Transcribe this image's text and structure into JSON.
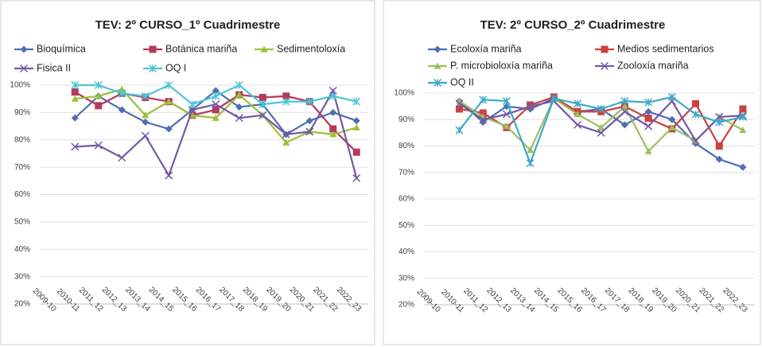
{
  "chart_data": [
    {
      "type": "line",
      "title": "TEV: 2º CURSO_1º Cuadrimestre",
      "categories": [
        "2009-10",
        "2010-11",
        "2011_12",
        "2012_13",
        "2013_14",
        "2014_15",
        "2015_16",
        "2016_17",
        "2017_18",
        "2018_19",
        "2019_20",
        "2020_21",
        "2021_22",
        "2022_23"
      ],
      "ylim": [
        20,
        100
      ],
      "yticks": [
        {
          "value": 20,
          "label": "20%"
        },
        {
          "value": 30,
          "label": "30%"
        },
        {
          "value": 40,
          "label": "40%"
        },
        {
          "value": 50,
          "label": "50%"
        },
        {
          "value": 60,
          "label": "60%"
        },
        {
          "value": 70,
          "label": "70%"
        },
        {
          "value": 80,
          "label": "80%"
        },
        {
          "value": 90,
          "label": "90%"
        },
        {
          "value": 100,
          "label": "100%"
        }
      ],
      "grid": true,
      "legend": "top",
      "series": [
        {
          "name": "Bioquímica",
          "color": "#4f6fb0",
          "marker": "diamond",
          "values": [
            null,
            88,
            96,
            91,
            86.5,
            84,
            91,
            98,
            92,
            93,
            82,
            87,
            90,
            87
          ]
        },
        {
          "name": "Botánica mariña",
          "color": "#b23a5a",
          "marker": "square",
          "values": [
            null,
            97.5,
            92.5,
            97,
            95.5,
            94,
            89,
            91,
            96.5,
            95.5,
            96,
            94,
            84,
            75.5
          ]
        },
        {
          "name": "Sedimentoloxía",
          "color": "#9bc03b",
          "marker": "triangle",
          "values": [
            null,
            95,
            96,
            98.5,
            89,
            94,
            89,
            88,
            96.5,
            89,
            79,
            83,
            82,
            84.5
          ]
        },
        {
          "name": "Fisica II",
          "color": "#7458a6",
          "marker": "x",
          "values": [
            null,
            77.5,
            78,
            73.5,
            81.5,
            67,
            91,
            93,
            88,
            89,
            82,
            83,
            98,
            66
          ]
        },
        {
          "name": "OQ I",
          "color": "#4cc6d8",
          "marker": "star",
          "values": [
            null,
            100,
            100,
            97,
            96,
            100,
            93,
            96,
            100,
            93,
            94,
            94,
            96,
            94
          ]
        }
      ]
    },
    {
      "type": "line",
      "title": "TEV: 2º CURSO_2º Cuadrimestre",
      "categories": [
        "2009-10",
        "2010-11",
        "2011_12",
        "2012_13",
        "2013_14",
        "2014_15",
        "2015_16",
        "2016_17",
        "2017_18",
        "2018_19",
        "2019_20",
        "2020_21",
        "2021_22",
        "2022_23"
      ],
      "ylim": [
        20,
        100
      ],
      "yticks": [
        {
          "value": 20,
          "label": "20%"
        },
        {
          "value": 30,
          "label": "30%"
        },
        {
          "value": 40,
          "label": "40%"
        },
        {
          "value": 50,
          "label": "50%"
        },
        {
          "value": 60,
          "label": "60%"
        },
        {
          "value": 70,
          "label": "70%"
        },
        {
          "value": 80,
          "label": "80%"
        },
        {
          "value": 90,
          "label": "90%"
        },
        {
          "value": 100,
          "label": "100%"
        }
      ],
      "grid": true,
      "legend": "top",
      "series": [
        {
          "name": "Ecoloxía mariña",
          "color": "#4f6fb0",
          "marker": "diamond",
          "values": [
            null,
            97,
            89,
            95,
            94,
            98,
            93,
            94,
            88,
            93,
            90,
            81,
            75,
            72
          ]
        },
        {
          "name": "Medios sedimentarios",
          "color": "#c8423e",
          "marker": "square",
          "values": [
            null,
            94,
            92.5,
            87,
            95.5,
            98.5,
            93,
            93,
            95,
            90.5,
            86.5,
            96,
            80,
            94
          ]
        },
        {
          "name": "P. microbioloxía mariña",
          "color": "#9bc062",
          "marker": "triangle",
          "values": [
            null,
            97,
            91,
            87.5,
            78.5,
            98,
            92,
            87,
            95,
            78,
            87,
            82,
            91,
            86
          ]
        },
        {
          "name": "Zooloxía mariña",
          "color": "#7458a6",
          "marker": "x",
          "values": [
            null,
            96,
            90,
            92,
            95,
            97,
            88,
            85,
            93,
            87.5,
            97,
            82,
            91,
            91.5
          ]
        },
        {
          "name": "OQ II",
          "color": "#3fa8c8",
          "marker": "star",
          "values": [
            null,
            86,
            97.5,
            97,
            73.5,
            98,
            96,
            94,
            97,
            96.5,
            98.5,
            92,
            89,
            91
          ]
        }
      ]
    }
  ]
}
